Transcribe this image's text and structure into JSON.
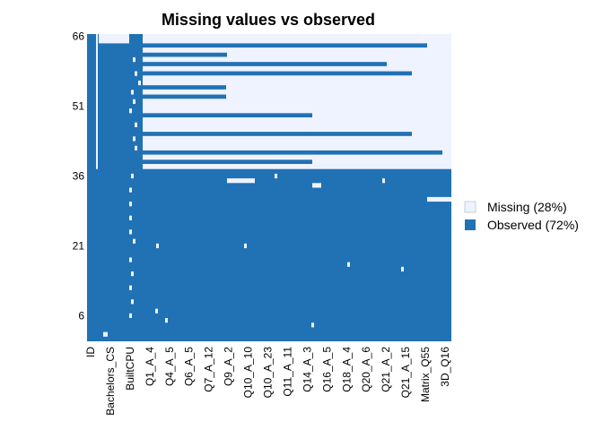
{
  "chart_data": {
    "type": "heatmap",
    "title": "Missing values vs observed",
    "xlabel": "",
    "ylabel": "",
    "y_ticks": [
      6,
      21,
      36,
      51,
      66
    ],
    "row_count": 66,
    "x_tick_labels": [
      "ID",
      "Bachelors_CS",
      "BuiltCPU",
      "Q1_A_4",
      "Q4_A_5",
      "Q6_A_5",
      "Q7_A_12",
      "Q9_A_2",
      "Q10_A_10",
      "Q10_A_23",
      "Q11_A_11",
      "Q14_A_3",
      "Q16_A_5",
      "Q18_A_4",
      "Q20_A_6",
      "Q21_A_2",
      "Q21_A_15",
      "Matrix_Q55",
      "3D_Q16"
    ],
    "legend": {
      "position": "right",
      "entries": [
        {
          "label": "Missing (28%)",
          "color": "#EFF3FF"
        },
        {
          "label": "Observed (72%)",
          "color": "#2171B5"
        }
      ]
    },
    "missing_fraction": 0.28,
    "observed_fraction": 0.72
  }
}
